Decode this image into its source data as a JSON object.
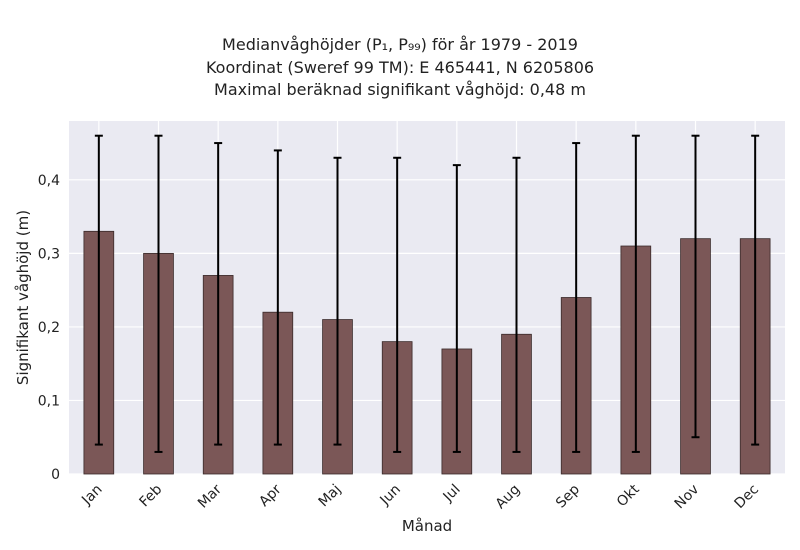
{
  "chart_data": {
    "type": "bar",
    "title_lines": [
      "Medianvåghöjder (P₁, P₉₉) för år 1979 - 2019",
      "Koordinat (Sweref 99 TM): E 465441, N 6205806",
      "Maximal beräknad signifikant våghöjd: 0,48 m"
    ],
    "xlabel": "Månad",
    "ylabel": "Signifikant våghöjd (m)",
    "categories": [
      "Jan",
      "Feb",
      "Mar",
      "Apr",
      "Maj",
      "Jun",
      "Jul",
      "Aug",
      "Sep",
      "Okt",
      "Nov",
      "Dec"
    ],
    "values": [
      0.33,
      0.3,
      0.27,
      0.22,
      0.21,
      0.18,
      0.17,
      0.19,
      0.24,
      0.31,
      0.32,
      0.32
    ],
    "error_low": [
      0.04,
      0.03,
      0.04,
      0.04,
      0.04,
      0.03,
      0.03,
      0.03,
      0.03,
      0.03,
      0.05,
      0.04
    ],
    "error_high": [
      0.46,
      0.46,
      0.45,
      0.44,
      0.43,
      0.43,
      0.42,
      0.43,
      0.45,
      0.46,
      0.46,
      0.46
    ],
    "ylim": [
      0,
      0.48
    ],
    "yticks": [
      0,
      0.1,
      0.2,
      0.3,
      0.4
    ],
    "ytick_labels": [
      "0",
      "0,1",
      "0,2",
      "0,3",
      "0,4"
    ],
    "grid": true,
    "colors": {
      "bar": "#7b5757",
      "bar_edge": "#3a2a2a",
      "errorbar": "#000000",
      "plot_bg": "#eaeaf2",
      "grid": "#ffffff"
    }
  }
}
